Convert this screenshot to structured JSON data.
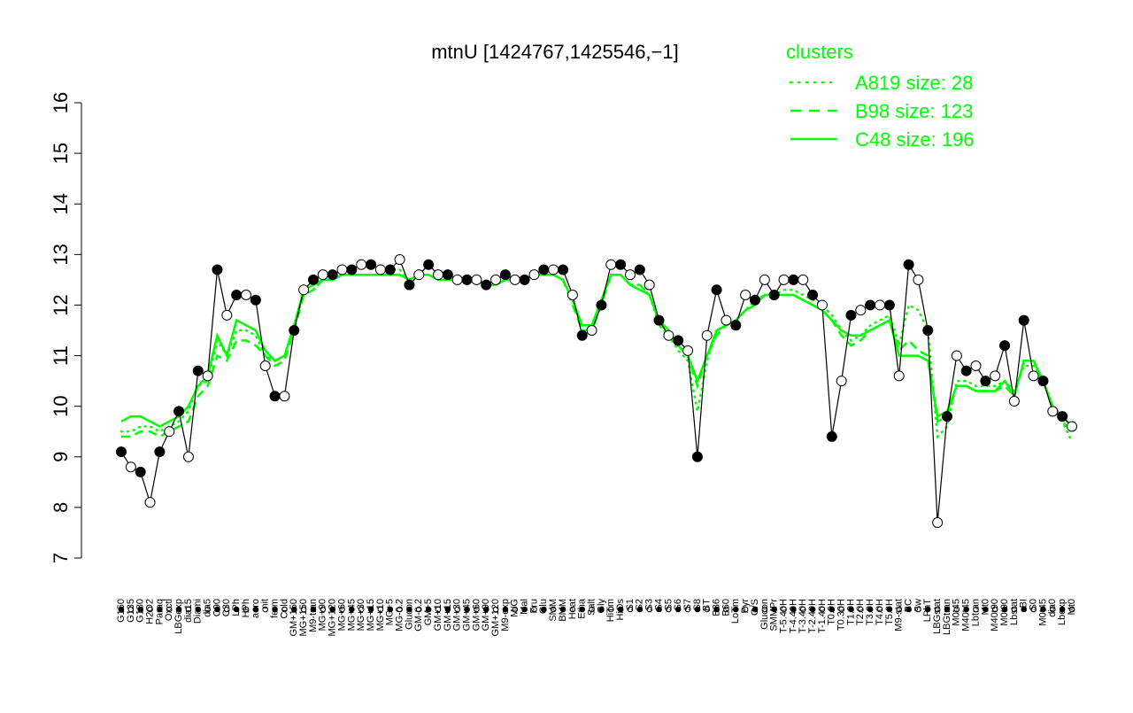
{
  "chart_data": {
    "type": "line",
    "title": "mtnU [1424767,1425546,−1]",
    "ylim": [
      7,
      16
    ],
    "y_ticks": [
      7,
      8,
      9,
      10,
      11,
      12,
      13,
      14,
      15,
      16
    ],
    "x_tick_labels": [
      "G150",
      "G135",
      "G180",
      "H2O2",
      "Paraq",
      "Oxctl",
      "LBGexp",
      "dia15",
      "Diami",
      "dia5",
      "C90",
      "C30",
      "LPh",
      "HPh",
      "aero",
      "nit",
      "ferm",
      "Cold",
      "GM+150",
      "MG+150",
      "M9-tran",
      "MG+90",
      "MG+120",
      "MG+60",
      "MG+45",
      "MG+30",
      "MG+15",
      "MG+10",
      "MG+5",
      "MG-0.2",
      "Glucon",
      "GM-0.2",
      "GM+5",
      "GM+10",
      "GM+15",
      "GM+30",
      "GM+45",
      "GM+60",
      "GM+90",
      "GM+120",
      "M9-exp",
      "M/G",
      "Mal",
      "Fru",
      "Glu",
      "SMM",
      "BMM",
      "Heat",
      "Etha",
      "Salt",
      "Gly",
      "HiTm",
      "HiOs",
      "S1",
      "S2",
      "S3",
      "S4",
      "S5",
      "S6",
      "S7",
      "S8",
      "BT",
      "B36",
      "B60",
      "LoTm",
      "Pyr",
      "G/S",
      "Glucon",
      "SMMPr",
      "T-5.40H",
      "T-4.40H",
      "T-3.40H",
      "T-2.40H",
      "T-1.40H",
      "T0.0H",
      "T0.30H",
      "T1.0H",
      "T2.0H",
      "T3.0H",
      "T4.0H",
      "T5.0H",
      "M9-stat",
      "BC",
      "Sw",
      "LPhT",
      "LBGstat",
      "LBGtran",
      "M0t45",
      "M40t45",
      "Lbtran",
      "Mt0",
      "M40t90",
      "M0t90",
      "Lbstat",
      "BI",
      "S0",
      "M0t45",
      "dia0",
      "Lbexp",
      "Mt0"
    ],
    "series": [
      {
        "name": "A819 size: 28",
        "style": "dotted",
        "color": "#00ff00",
        "values": [
          9.5,
          9.5,
          9.6,
          9.6,
          9.5,
          9.6,
          9.7,
          9.9,
          10.4,
          10.5,
          11.3,
          11.0,
          11.5,
          11.5,
          11.4,
          11.0,
          10.9,
          11.0,
          11.6,
          12.2,
          12.3,
          12.5,
          12.5,
          12.6,
          12.6,
          12.6,
          12.6,
          12.6,
          12.7,
          12.7,
          12.5,
          12.6,
          12.6,
          12.5,
          12.5,
          12.5,
          12.5,
          12.5,
          12.4,
          12.4,
          12.5,
          12.5,
          12.5,
          12.6,
          12.6,
          12.6,
          12.5,
          12.1,
          11.5,
          11.5,
          12.1,
          12.6,
          12.6,
          12.4,
          12.4,
          12.2,
          11.6,
          11.4,
          11.1,
          10.9,
          9.9,
          10.9,
          11.5,
          11.6,
          11.7,
          11.9,
          12.1,
          12.2,
          12.2,
          12.3,
          12.3,
          12.2,
          12.1,
          12.0,
          11.8,
          11.5,
          11.3,
          11.4,
          11.6,
          11.7,
          11.8,
          11.2,
          12.0,
          11.9,
          11.5,
          9.4,
          9.6,
          10.5,
          10.5,
          10.4,
          10.4,
          10.4,
          10.5,
          10.3,
          10.8,
          10.8,
          10.5,
          10.0,
          9.7,
          9.3
        ]
      },
      {
        "name": "B98 size: 123",
        "style": "dashed",
        "color": "#00ff00",
        "values": [
          9.4,
          9.4,
          9.5,
          9.5,
          9.4,
          9.5,
          9.6,
          9.7,
          10.2,
          10.4,
          11.0,
          10.9,
          11.3,
          11.3,
          11.2,
          11.0,
          10.8,
          10.9,
          11.5,
          12.2,
          12.3,
          12.5,
          12.5,
          12.6,
          12.6,
          12.6,
          12.6,
          12.6,
          12.6,
          12.6,
          12.5,
          12.6,
          12.6,
          12.5,
          12.5,
          12.5,
          12.5,
          12.5,
          12.4,
          12.4,
          12.5,
          12.5,
          12.5,
          12.6,
          12.6,
          12.6,
          12.5,
          12.0,
          11.5,
          11.5,
          12.0,
          12.6,
          12.6,
          12.4,
          12.4,
          12.2,
          11.7,
          11.4,
          11.2,
          11.0,
          10.4,
          11.0,
          11.4,
          11.6,
          11.7,
          11.9,
          12.0,
          12.2,
          12.2,
          12.2,
          12.2,
          12.1,
          12.0,
          11.9,
          11.7,
          11.4,
          11.2,
          11.3,
          11.5,
          11.6,
          11.7,
          11.1,
          11.3,
          11.1,
          11.0,
          9.7,
          9.8,
          10.4,
          10.4,
          10.3,
          10.3,
          10.3,
          10.4,
          10.2,
          10.9,
          10.9,
          10.5,
          10.0,
          9.7,
          9.5
        ]
      },
      {
        "name": "C48 size: 196",
        "style": "solid",
        "color": "#00ff00",
        "values": [
          9.7,
          9.8,
          9.8,
          9.7,
          9.6,
          9.7,
          9.8,
          10.0,
          10.4,
          10.6,
          11.4,
          11.0,
          11.7,
          11.6,
          11.5,
          11.1,
          10.9,
          11.0,
          11.6,
          12.3,
          12.4,
          12.5,
          12.5,
          12.6,
          12.6,
          12.6,
          12.6,
          12.6,
          12.6,
          12.6,
          12.5,
          12.6,
          12.6,
          12.5,
          12.5,
          12.5,
          12.5,
          12.5,
          12.4,
          12.4,
          12.5,
          12.5,
          12.5,
          12.6,
          12.6,
          12.6,
          12.5,
          12.1,
          11.6,
          11.6,
          12.1,
          12.6,
          12.6,
          12.4,
          12.3,
          12.2,
          11.7,
          11.5,
          11.2,
          11.0,
          10.5,
          11.0,
          11.5,
          11.6,
          11.7,
          11.9,
          12.0,
          12.2,
          12.2,
          12.2,
          12.2,
          12.1,
          12.0,
          11.9,
          11.7,
          11.5,
          11.4,
          11.4,
          11.5,
          11.6,
          11.7,
          11.0,
          11.0,
          11.0,
          10.9,
          9.8,
          9.9,
          10.4,
          10.4,
          10.3,
          10.3,
          10.3,
          10.5,
          10.2,
          10.9,
          10.9,
          10.5,
          10.0,
          9.8,
          9.6
        ]
      },
      {
        "name": "mtnU",
        "style": "points",
        "color": "#000000",
        "values": [
          9.1,
          8.8,
          8.7,
          8.1,
          9.1,
          9.5,
          9.9,
          9.0,
          10.7,
          10.6,
          12.7,
          11.8,
          12.2,
          12.2,
          12.1,
          10.8,
          10.2,
          10.2,
          11.5,
          12.3,
          12.5,
          12.6,
          12.6,
          12.7,
          12.7,
          12.8,
          12.8,
          12.7,
          12.7,
          12.9,
          12.4,
          12.6,
          12.8,
          12.6,
          12.6,
          12.5,
          12.5,
          12.5,
          12.4,
          12.5,
          12.6,
          12.5,
          12.5,
          12.6,
          12.7,
          12.7,
          12.7,
          12.2,
          11.4,
          11.5,
          12.0,
          12.8,
          12.8,
          12.6,
          12.7,
          12.4,
          11.7,
          11.4,
          11.3,
          11.1,
          9.0,
          11.4,
          12.3,
          11.7,
          11.6,
          12.2,
          12.1,
          12.5,
          12.2,
          12.5,
          12.5,
          12.5,
          12.2,
          12.0,
          9.4,
          10.5,
          11.8,
          11.9,
          12.0,
          12.0,
          12.0,
          10.6,
          12.8,
          12.5,
          11.5,
          7.7,
          9.8,
          11.0,
          10.7,
          10.8,
          10.5,
          10.6,
          11.2,
          10.1,
          11.7,
          10.6,
          10.5,
          9.9,
          9.8,
          9.6
        ]
      }
    ],
    "legend": {
      "title": "clusters",
      "entries": [
        "A819 size: 28",
        "B98 size: 123",
        "C48 size: 196"
      ],
      "placement": "top-right"
    },
    "grid": false
  }
}
